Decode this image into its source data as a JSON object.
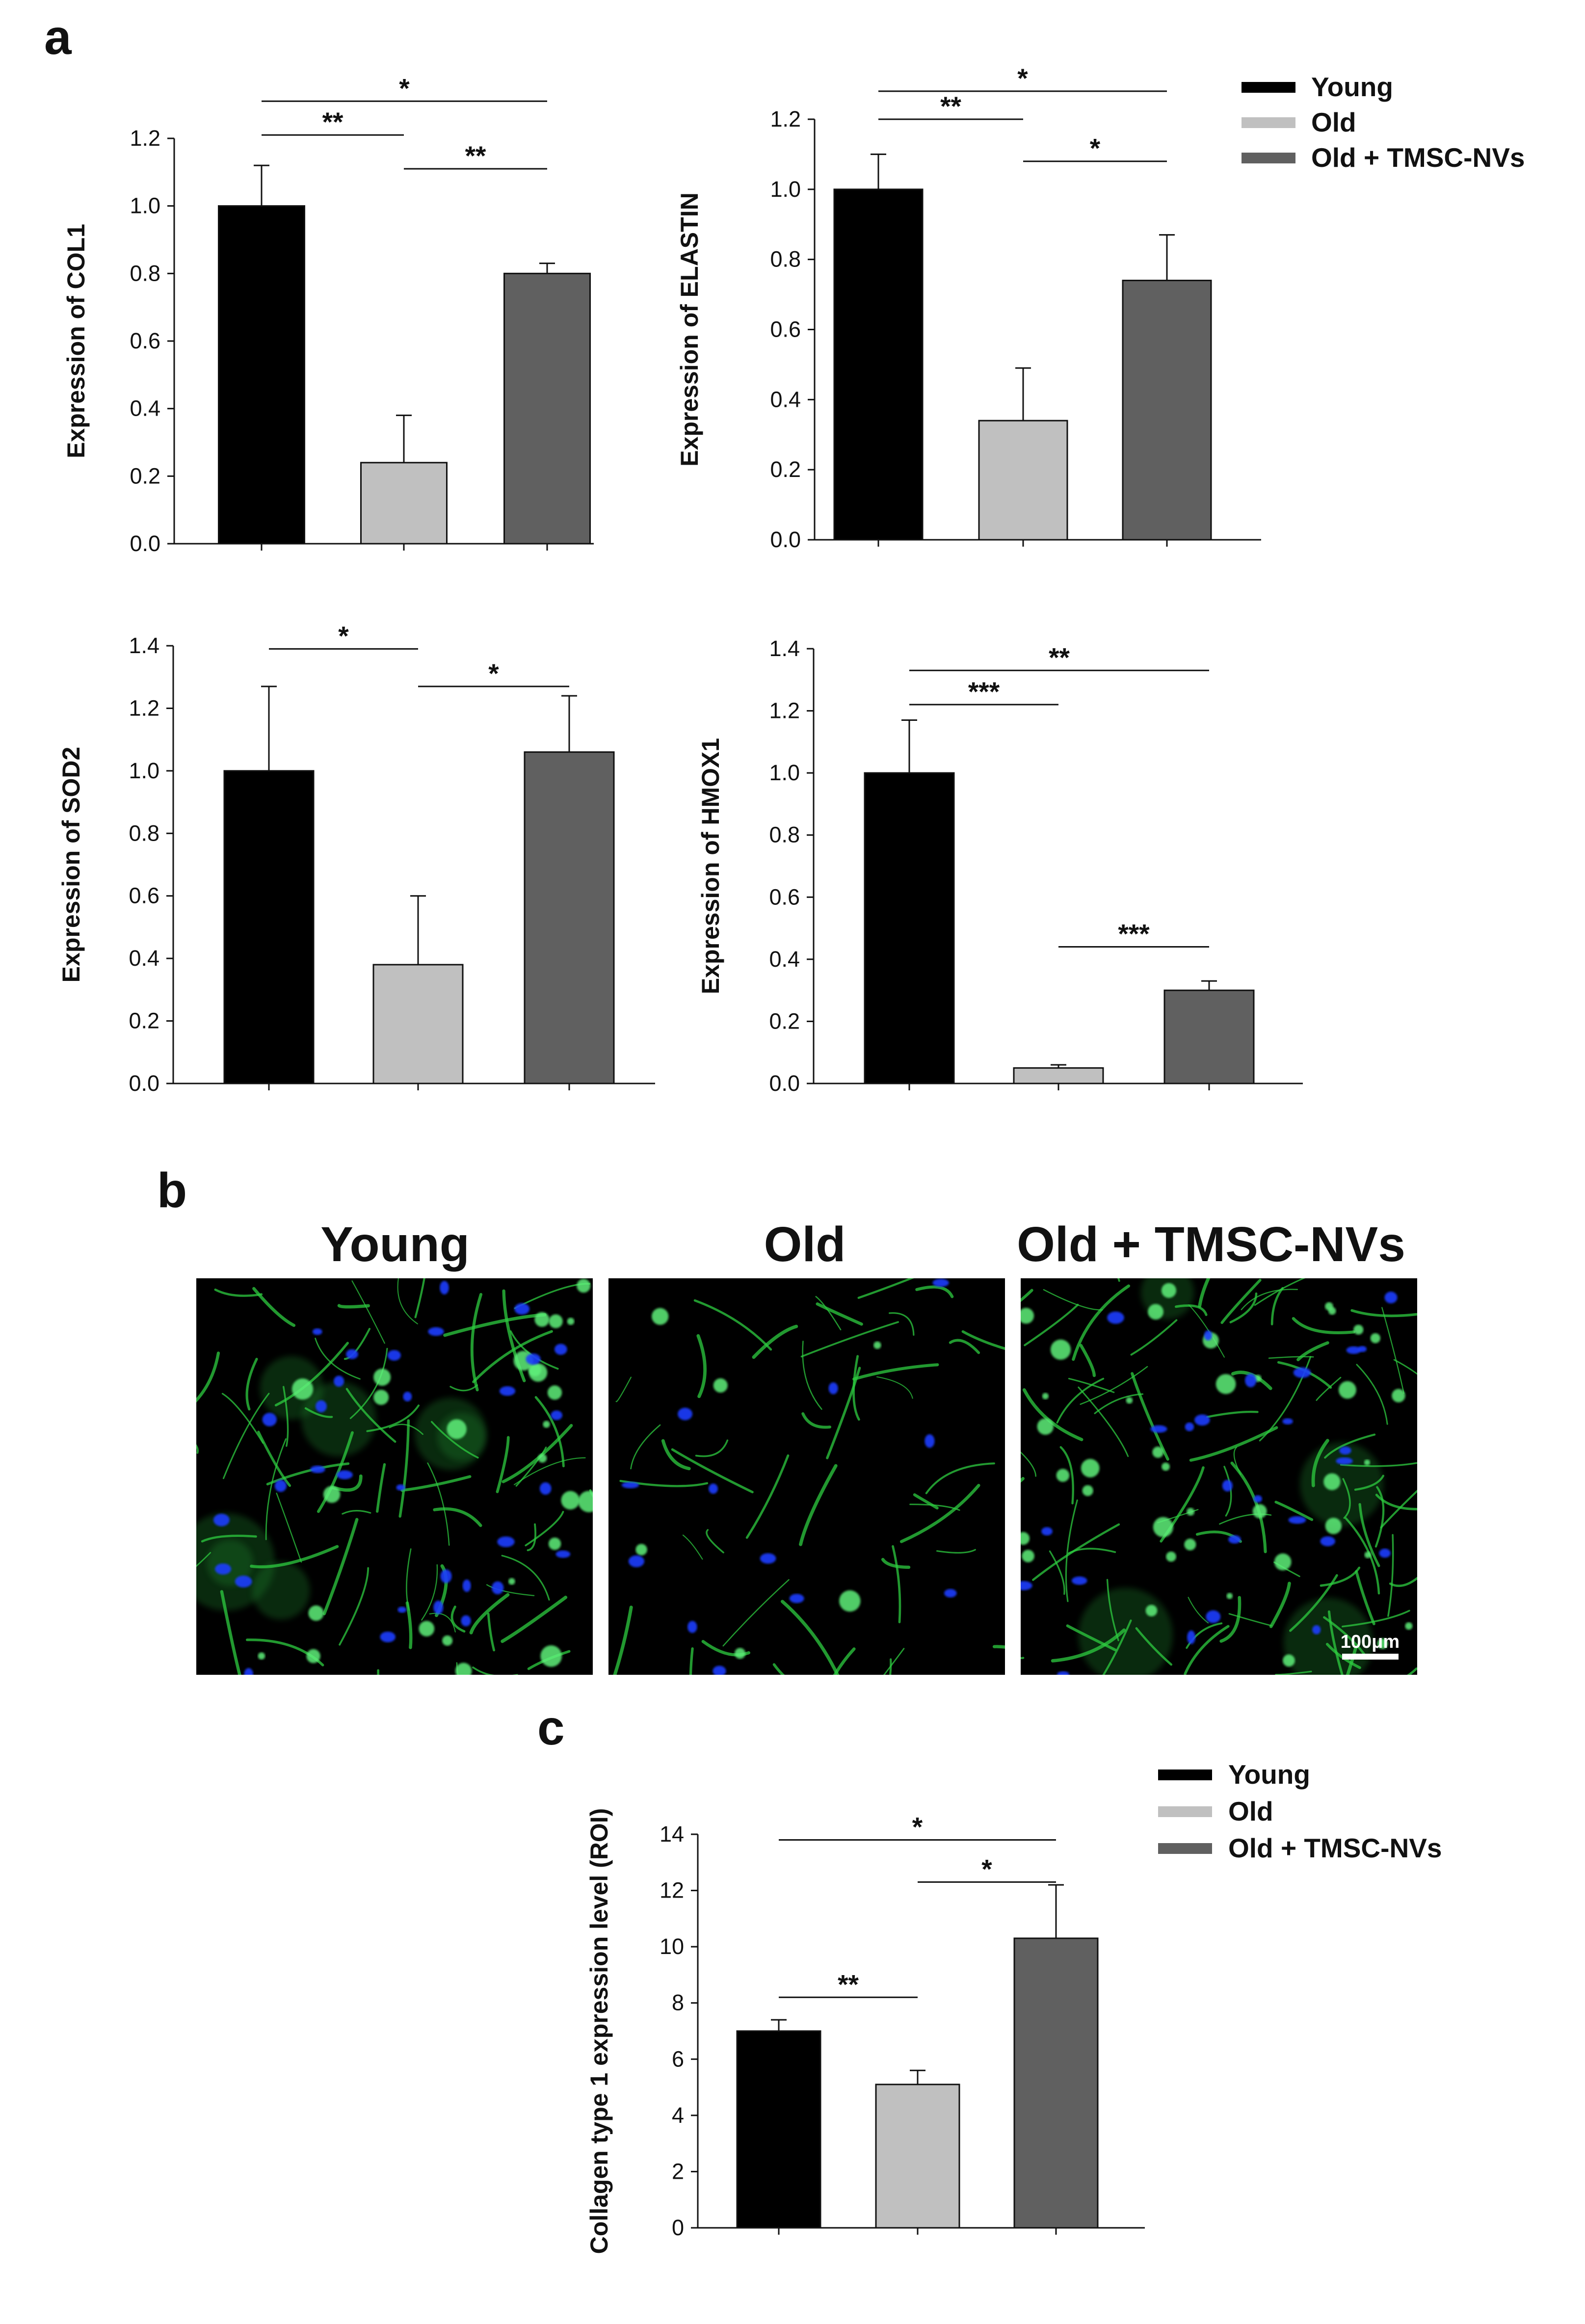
{
  "panel_labels": {
    "a": "a",
    "b": "b",
    "c": "c"
  },
  "colors": {
    "young": "#000000",
    "old": "#c0c0c0",
    "old_tmsc": "#606060",
    "fluor_green": "#2ecc40",
    "fluor_blue": "#1a3cff",
    "micro_bg": "#000000"
  },
  "legend_a": [
    {
      "label": "Young",
      "color": "#000000"
    },
    {
      "label": "Old",
      "color": "#c0c0c0"
    },
    {
      "label": "Old + TMSC-NVs",
      "color": "#606060"
    }
  ],
  "legend_c": [
    {
      "label": "Young",
      "color": "#000000"
    },
    {
      "label": "Old",
      "color": "#c0c0c0"
    },
    {
      "label": "Old + TMSC-NVs",
      "color": "#606060"
    }
  ],
  "images_b": {
    "titles": [
      "Young",
      "Old",
      "Old + TMSC-NVs"
    ],
    "scale_bar_label": "100μm"
  },
  "chart_data": [
    {
      "id": "col1",
      "type": "bar",
      "ylabel": "Expression of COL1",
      "ylim": [
        0,
        1.2
      ],
      "yticks": [
        "0.0",
        "0.2",
        "0.4",
        "0.6",
        "0.8",
        "1.0",
        "1.2"
      ],
      "categories": [
        "Young",
        "Old",
        "Old + TMSC-NVs"
      ],
      "values": [
        1.0,
        0.24,
        0.8
      ],
      "errors": [
        0.12,
        0.14,
        0.03
      ],
      "significance": [
        {
          "from": 0,
          "to": 1,
          "label": "**",
          "level": 1.21
        },
        {
          "from": 1,
          "to": 2,
          "label": "**",
          "level": 1.11
        },
        {
          "from": 0,
          "to": 2,
          "label": "*",
          "level": 1.31
        }
      ]
    },
    {
      "id": "elastin",
      "type": "bar",
      "ylabel": "Expression of ELASTIN",
      "ylim": [
        0,
        1.2
      ],
      "yticks": [
        "0.0",
        "0.2",
        "0.4",
        "0.6",
        "0.8",
        "1.0",
        "1.2"
      ],
      "categories": [
        "Young",
        "Old",
        "Old + TMSC-NVs"
      ],
      "values": [
        1.0,
        0.34,
        0.74
      ],
      "errors": [
        0.1,
        0.15,
        0.13
      ],
      "significance": [
        {
          "from": 0,
          "to": 1,
          "label": "**",
          "level": 1.2
        },
        {
          "from": 1,
          "to": 2,
          "label": "*",
          "level": 1.08
        },
        {
          "from": 0,
          "to": 2,
          "label": "*",
          "level": 1.28
        }
      ]
    },
    {
      "id": "sod2",
      "type": "bar",
      "ylabel": "Expression of SOD2",
      "ylim": [
        0,
        1.4
      ],
      "yticks": [
        "0.0",
        "0.2",
        "0.4",
        "0.6",
        "0.8",
        "1.0",
        "1.2",
        "1.4"
      ],
      "categories": [
        "Young",
        "Old",
        "Old + TMSC-NVs"
      ],
      "values": [
        1.0,
        0.38,
        1.06
      ],
      "errors": [
        0.27,
        0.22,
        0.18
      ],
      "significance": [
        {
          "from": 0,
          "to": 1,
          "label": "*",
          "level": 1.39
        },
        {
          "from": 1,
          "to": 2,
          "label": "*",
          "level": 1.27
        }
      ]
    },
    {
      "id": "hmox1",
      "type": "bar",
      "ylabel": "Expression of HMOX1",
      "ylim": [
        0,
        1.4
      ],
      "yticks": [
        "0.0",
        "0.2",
        "0.4",
        "0.6",
        "0.8",
        "1.0",
        "1.2",
        "1.4"
      ],
      "categories": [
        "Young",
        "Old",
        "Old + TMSC-NVs"
      ],
      "values": [
        1.0,
        0.05,
        0.3
      ],
      "errors": [
        0.17,
        0.01,
        0.03
      ],
      "significance": [
        {
          "from": 0,
          "to": 1,
          "label": "***",
          "level": 1.22
        },
        {
          "from": 1,
          "to": 2,
          "label": "***",
          "level": 0.44
        },
        {
          "from": 0,
          "to": 2,
          "label": "**",
          "level": 1.33
        }
      ]
    },
    {
      "id": "collagen",
      "type": "bar",
      "ylabel": "Collagen type 1 expression level (ROI)",
      "ylim": [
        0,
        14
      ],
      "yticks": [
        "0",
        "2",
        "4",
        "6",
        "8",
        "10",
        "12",
        "14"
      ],
      "categories": [
        "Young",
        "Old",
        "Old + TMSC-NVs"
      ],
      "values": [
        7.0,
        5.1,
        10.3
      ],
      "errors": [
        0.4,
        0.5,
        1.9
      ],
      "significance": [
        {
          "from": 0,
          "to": 1,
          "label": "**",
          "level": 8.2
        },
        {
          "from": 1,
          "to": 2,
          "label": "*",
          "level": 12.3
        },
        {
          "from": 0,
          "to": 2,
          "label": "*",
          "level": 13.8
        }
      ]
    }
  ]
}
